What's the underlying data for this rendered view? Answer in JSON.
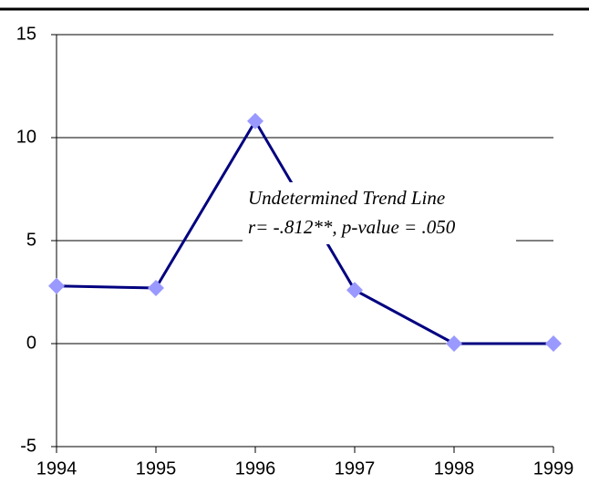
{
  "chart_data": {
    "type": "line",
    "x": [
      1994,
      1995,
      1996,
      1997,
      1998,
      1999
    ],
    "values": [
      2.8,
      2.7,
      10.8,
      2.6,
      0,
      0
    ],
    "color": "#000080",
    "marker_color": "#9999ff",
    "xlim": [
      1994,
      1999
    ],
    "xticks": [
      1994,
      1995,
      1996,
      1997,
      1998,
      1999
    ],
    "ylim": [
      -5,
      15
    ],
    "yticks": [
      -5,
      0,
      5,
      10,
      15
    ],
    "grid": true,
    "annotations": [
      "Undetermined Trend Line",
      "r= -.812**, p-value = .050"
    ]
  }
}
